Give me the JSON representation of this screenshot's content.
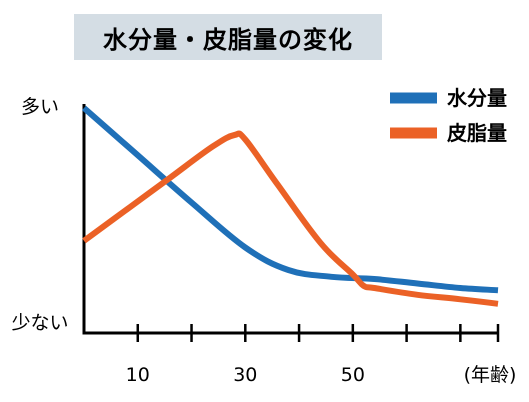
{
  "chart_data": {
    "type": "line",
    "title": "水分量・皮脂量の変化",
    "xlabel": "(年齢)",
    "ylabel": "",
    "ylabel_high": "多い",
    "ylabel_low": "少ない",
    "xlim": [
      0,
      77
    ],
    "ylim": [
      0,
      100
    ],
    "xticks": [
      0,
      10,
      20,
      30,
      40,
      50,
      60,
      70,
      77
    ],
    "xtick_labels": [
      {
        "x": 10,
        "label": "10"
      },
      {
        "x": 30,
        "label": "30"
      },
      {
        "x": 50,
        "label": "50"
      }
    ],
    "grid": false,
    "legend_position": "top-right",
    "series": [
      {
        "name": "水分量",
        "color": "#1f70b8",
        "x": [
          0,
          10,
          20,
          30,
          38,
          46,
          54,
          62,
          70,
          77
        ],
        "y": [
          100,
          79,
          58,
          38,
          28,
          25,
          24,
          22,
          20,
          19
        ]
      },
      {
        "name": "皮脂量",
        "color": "#eb6126",
        "x": [
          0,
          8,
          16,
          24,
          28,
          30,
          36,
          44,
          50,
          52,
          54,
          62,
          70,
          77
        ],
        "y": [
          41,
          55,
          69,
          83,
          88,
          86,
          66,
          40,
          26,
          21,
          20,
          17,
          15,
          13
        ]
      }
    ]
  }
}
